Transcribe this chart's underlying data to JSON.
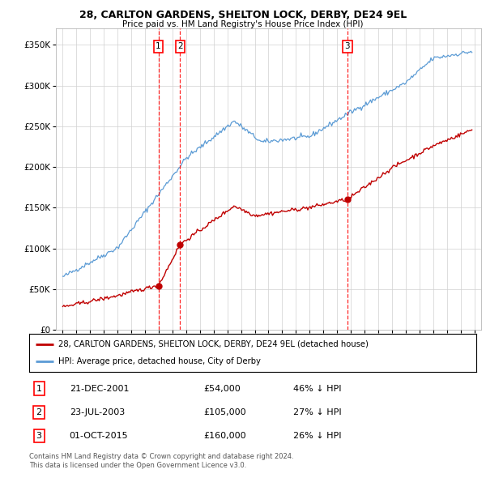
{
  "title": "28, CARLTON GARDENS, SHELTON LOCK, DERBY, DE24 9EL",
  "subtitle": "Price paid vs. HM Land Registry's House Price Index (HPI)",
  "legend_line1": "28, CARLTON GARDENS, SHELTON LOCK, DERBY, DE24 9EL (detached house)",
  "legend_line2": "HPI: Average price, detached house, City of Derby",
  "footer_line1": "Contains HM Land Registry data © Crown copyright and database right 2024.",
  "footer_line2": "This data is licensed under the Open Government Licence v3.0.",
  "sales": [
    {
      "id": 1,
      "date": "21-DEC-2001",
      "price": 54000,
      "pct": "46% ↓ HPI",
      "year": 2001.97
    },
    {
      "id": 2,
      "date": "23-JUL-2003",
      "price": 105000,
      "pct": "27% ↓ HPI",
      "year": 2003.56
    },
    {
      "id": 3,
      "date": "01-OCT-2015",
      "price": 160000,
      "pct": "26% ↓ HPI",
      "year": 2015.75
    }
  ],
  "hpi_color": "#5b9bd5",
  "property_color": "#c00000",
  "dashed_color": "#ff0000",
  "background_color": "#ffffff",
  "grid_color": "#d0d0d0",
  "xlim": [
    1994.5,
    2025.5
  ],
  "ylim": [
    0,
    370000
  ],
  "yticks": [
    0,
    50000,
    100000,
    150000,
    200000,
    250000,
    300000,
    350000
  ]
}
